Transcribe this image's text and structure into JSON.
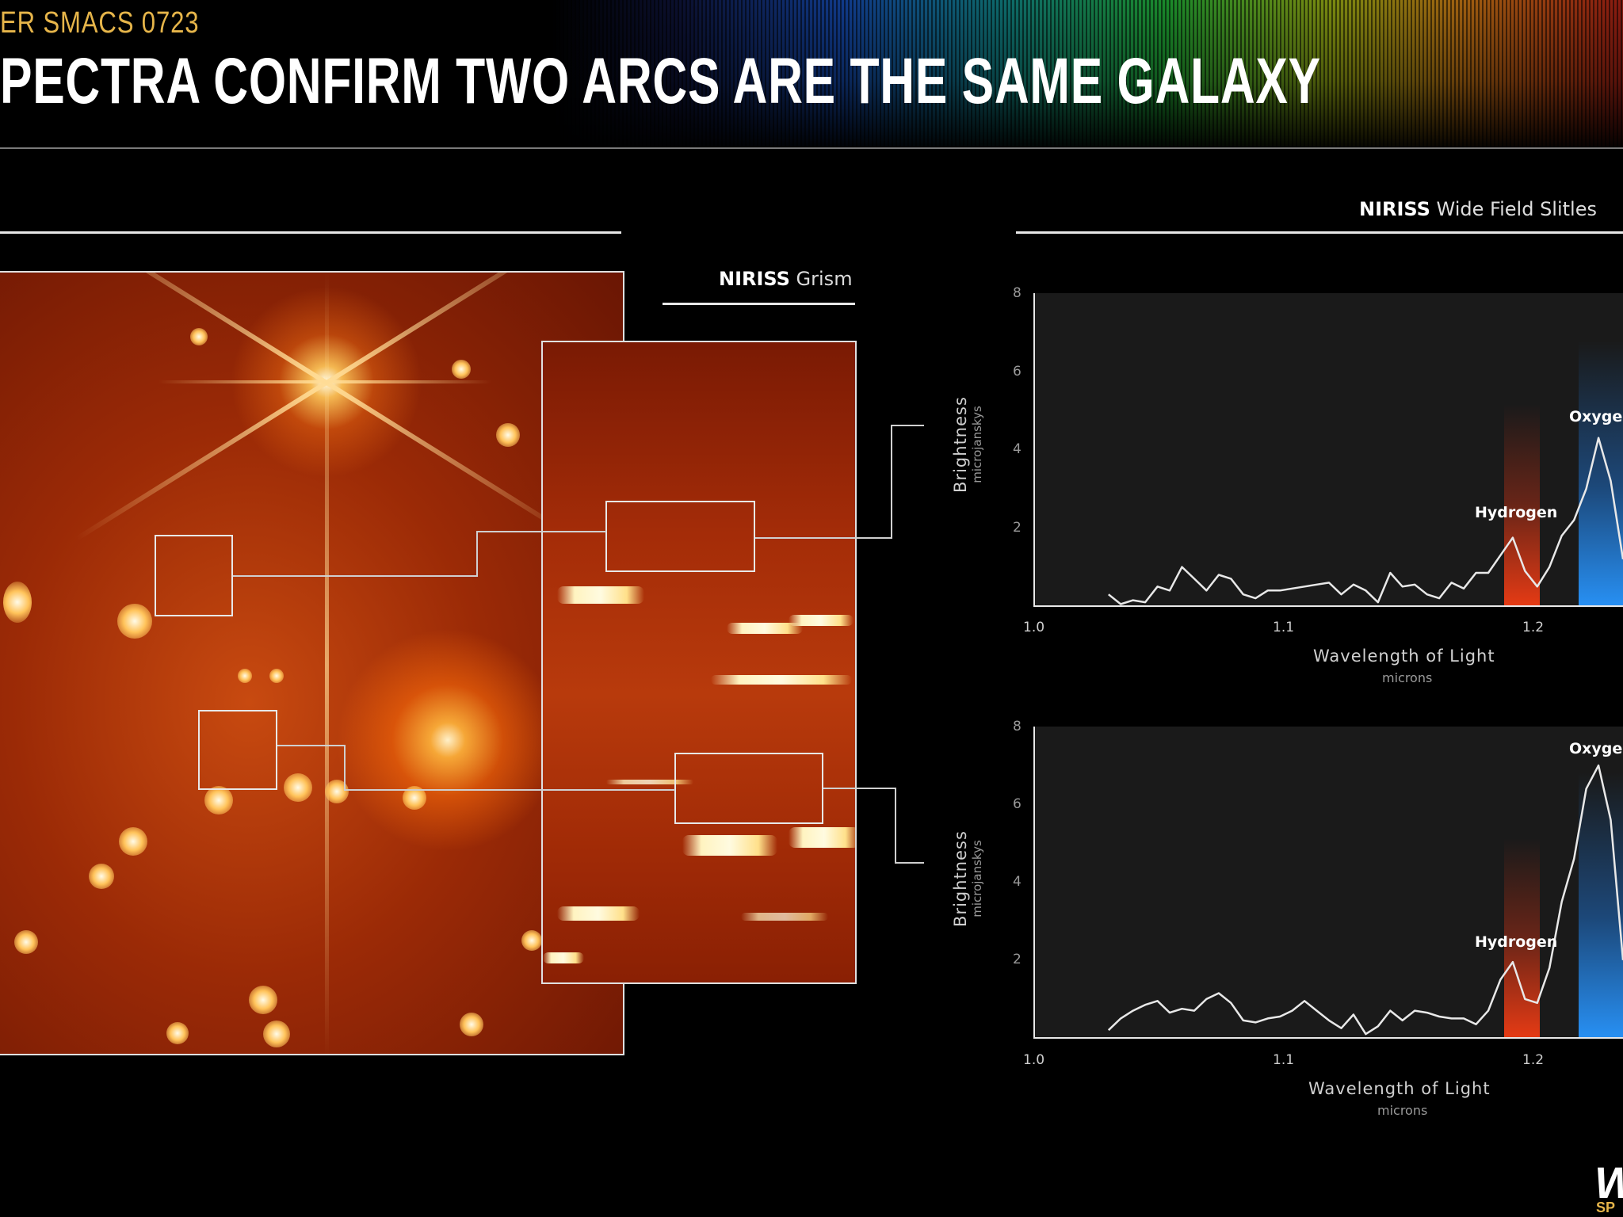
{
  "header": {
    "kicker": "ER SMACS 0723",
    "title": "PECTRA CONFIRM TWO ARCS ARE THE SAME GALAXY"
  },
  "left_section": {
    "grism_label_bold": "NIRISS",
    "grism_label_rest": " Grism"
  },
  "right_section": {
    "label_bold": "NIRISS",
    "label_rest": " Wide Field Slitles"
  },
  "logo": {
    "text": "W",
    "sub": "SP"
  },
  "colors": {
    "background": "#000000",
    "kicker": "#e6b54a",
    "hydrogen_band": "#e8401a",
    "oxygen_band": "#2a90e8",
    "spectrum_line": "#e8e8e8",
    "plot_bg": "#1a1a1a"
  },
  "chart_data": [
    {
      "type": "line",
      "ylabel": "Brightness",
      "ylabel_unit": "microjanskys",
      "xlabel": "Wavelength of Light",
      "xlabel_unit": "microns",
      "xlim": [
        1.0,
        1.24
      ],
      "ylim": [
        0,
        8
      ],
      "xticks": [
        "1.0",
        "1.1",
        "1.2"
      ],
      "yticks": [
        "2",
        "4",
        "6",
        "8"
      ],
      "grid": false,
      "bands": [
        {
          "label": "Hydrogen",
          "x0": 1.19,
          "x1": 1.202,
          "color": "#e8401a"
        },
        {
          "label": "Oxyger",
          "x0": 1.219,
          "x1": 1.24,
          "color": "#2a90e8"
        }
      ],
      "series": [
        {
          "x": [
            1.03,
            1.035,
            1.04,
            1.045,
            1.05,
            1.055,
            1.06,
            1.065,
            1.07,
            1.075,
            1.08,
            1.085,
            1.09,
            1.095,
            1.1,
            1.105,
            1.11,
            1.115,
            1.12,
            1.125,
            1.13,
            1.135,
            1.14,
            1.145,
            1.15,
            1.155,
            1.16,
            1.165,
            1.17,
            1.175,
            1.18,
            1.185,
            1.19,
            1.195,
            1.2,
            1.205,
            1.21,
            1.215,
            1.22,
            1.225,
            1.23,
            1.235,
            1.24
          ],
          "values": [
            0.3,
            0.05,
            0.15,
            0.1,
            0.5,
            0.4,
            1.0,
            0.7,
            0.4,
            0.8,
            0.7,
            0.3,
            0.2,
            0.4,
            0.4,
            0.45,
            0.5,
            0.55,
            0.6,
            0.3,
            0.55,
            0.4,
            0.1,
            0.85,
            0.5,
            0.55,
            0.3,
            0.2,
            0.6,
            0.45,
            0.85,
            0.85,
            1.3,
            1.75,
            0.9,
            0.5,
            1.0,
            1.8,
            2.2,
            3.0,
            4.3,
            3.2,
            1.2
          ]
        }
      ]
    },
    {
      "type": "line",
      "ylabel": "Brightness",
      "ylabel_unit": "microjanskys",
      "xlabel": "Wavelength of Light",
      "xlabel_unit": "microns",
      "xlim": [
        1.0,
        1.24
      ],
      "ylim": [
        0,
        8
      ],
      "xticks": [
        "1.0",
        "1.1",
        "1.2"
      ],
      "yticks": [
        "2",
        "4",
        "6",
        "8"
      ],
      "grid": false,
      "bands": [
        {
          "label": "Hydrogen",
          "x0": 1.19,
          "x1": 1.202,
          "color": "#e8401a"
        },
        {
          "label": "Oxyger",
          "x0": 1.219,
          "x1": 1.24,
          "color": "#2a90e8"
        }
      ],
      "series": [
        {
          "x": [
            1.03,
            1.035,
            1.04,
            1.045,
            1.05,
            1.055,
            1.06,
            1.065,
            1.07,
            1.075,
            1.08,
            1.085,
            1.09,
            1.095,
            1.1,
            1.105,
            1.11,
            1.115,
            1.12,
            1.125,
            1.13,
            1.135,
            1.14,
            1.145,
            1.15,
            1.155,
            1.16,
            1.165,
            1.17,
            1.175,
            1.18,
            1.185,
            1.19,
            1.195,
            1.2,
            1.205,
            1.21,
            1.215,
            1.22,
            1.225,
            1.23,
            1.235,
            1.24
          ],
          "values": [
            0.2,
            0.5,
            0.7,
            0.85,
            0.95,
            0.65,
            0.75,
            0.7,
            1.0,
            1.15,
            0.9,
            0.45,
            0.4,
            0.5,
            0.55,
            0.7,
            0.95,
            0.7,
            0.45,
            0.25,
            0.6,
            0.1,
            0.3,
            0.7,
            0.45,
            0.7,
            0.65,
            0.55,
            0.5,
            0.5,
            0.35,
            0.7,
            1.5,
            1.95,
            1.0,
            0.9,
            1.8,
            3.5,
            4.6,
            6.4,
            7.0,
            5.6,
            2.0
          ]
        }
      ]
    }
  ]
}
